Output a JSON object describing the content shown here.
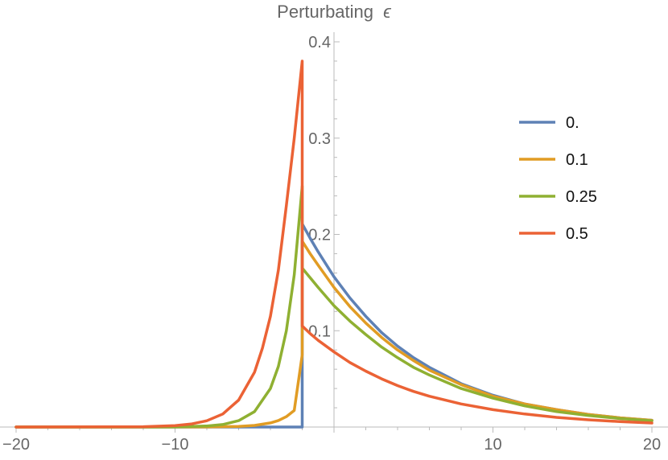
{
  "chart_data": {
    "type": "line",
    "title": "Perturbating",
    "title_symbol": "ϵ",
    "xlabel": "",
    "ylabel": "",
    "xlim": [
      -20,
      20
    ],
    "ylim": [
      0,
      0.4
    ],
    "grid": false,
    "legend_position": "right",
    "x_ticks": [
      {
        "value": -20,
        "label": "−20"
      },
      {
        "value": -10,
        "label": "−10"
      },
      {
        "value": 10,
        "label": "10"
      },
      {
        "value": 20,
        "label": "20"
      }
    ],
    "y_ticks": [
      {
        "value": 0.1,
        "label": "0.1"
      },
      {
        "value": 0.2,
        "label": "0.2"
      },
      {
        "value": 0.3,
        "label": "0.3"
      },
      {
        "value": 0.4,
        "label": "0.4"
      }
    ],
    "series": [
      {
        "name": "0.",
        "color": "#5e81b5",
        "x": [
          -20,
          -2.0,
          -2.0,
          -1.5,
          -1.0,
          0,
          1,
          2,
          3,
          4,
          5,
          6,
          8,
          10,
          12,
          14,
          16,
          18,
          20
        ],
        "y": [
          0,
          0,
          0.211,
          0.196,
          0.182,
          0.156,
          0.134,
          0.115,
          0.098,
          0.084,
          0.072,
          0.062,
          0.045,
          0.033,
          0.024,
          0.018,
          0.013,
          0.0095,
          0.007
        ]
      },
      {
        "name": "0.1",
        "color": "#e19c24",
        "x": [
          -20,
          -8,
          -6,
          -5,
          -4,
          -3.5,
          -3,
          -2.5,
          -2.0,
          -2.0,
          -1.5,
          -1,
          0,
          1,
          2,
          3,
          4,
          5,
          6,
          8,
          10,
          12,
          14,
          16,
          18,
          20
        ],
        "y": [
          0,
          0.0001,
          0.0007,
          0.0017,
          0.0043,
          0.0068,
          0.0108,
          0.0172,
          0.075,
          0.193,
          0.18,
          0.168,
          0.145,
          0.125,
          0.108,
          0.093,
          0.08,
          0.069,
          0.059,
          0.044,
          0.032,
          0.024,
          0.018,
          0.013,
          0.0095,
          0.007
        ]
      },
      {
        "name": "0.25",
        "color": "#8fb032",
        "x": [
          -20,
          -10,
          -8,
          -7,
          -6,
          -5,
          -4,
          -3.5,
          -3,
          -2.5,
          -2.0,
          -2.0,
          -1.5,
          -1,
          0,
          1,
          2,
          3,
          4,
          5,
          6,
          8,
          10,
          12,
          14,
          16,
          18,
          20
        ],
        "y": [
          0,
          0.0001,
          0.0011,
          0.0026,
          0.0066,
          0.016,
          0.04,
          0.063,
          0.1,
          0.158,
          0.25,
          0.165,
          0.155,
          0.145,
          0.126,
          0.11,
          0.096,
          0.083,
          0.072,
          0.062,
          0.054,
          0.04,
          0.03,
          0.022,
          0.016,
          0.012,
          0.0088,
          0.0065
        ]
      },
      {
        "name": "0.5",
        "color": "#eb6235",
        "x": [
          -20,
          -12,
          -10,
          -9,
          -8,
          -7,
          -6,
          -5,
          -4.5,
          -4,
          -3.5,
          -3,
          -2.5,
          -2.0,
          -2.0,
          -1.5,
          -1,
          0,
          1,
          2,
          3,
          4,
          5,
          6,
          8,
          10,
          12,
          14,
          16,
          18,
          20
        ],
        "y": [
          0,
          0.0003,
          0.0015,
          0.0031,
          0.0065,
          0.0135,
          0.028,
          0.057,
          0.082,
          0.115,
          0.163,
          0.23,
          0.3,
          0.38,
          0.105,
          0.097,
          0.09,
          0.078,
          0.067,
          0.058,
          0.05,
          0.043,
          0.037,
          0.032,
          0.024,
          0.018,
          0.0135,
          0.01,
          0.0075,
          0.0056,
          0.0042
        ]
      }
    ]
  }
}
